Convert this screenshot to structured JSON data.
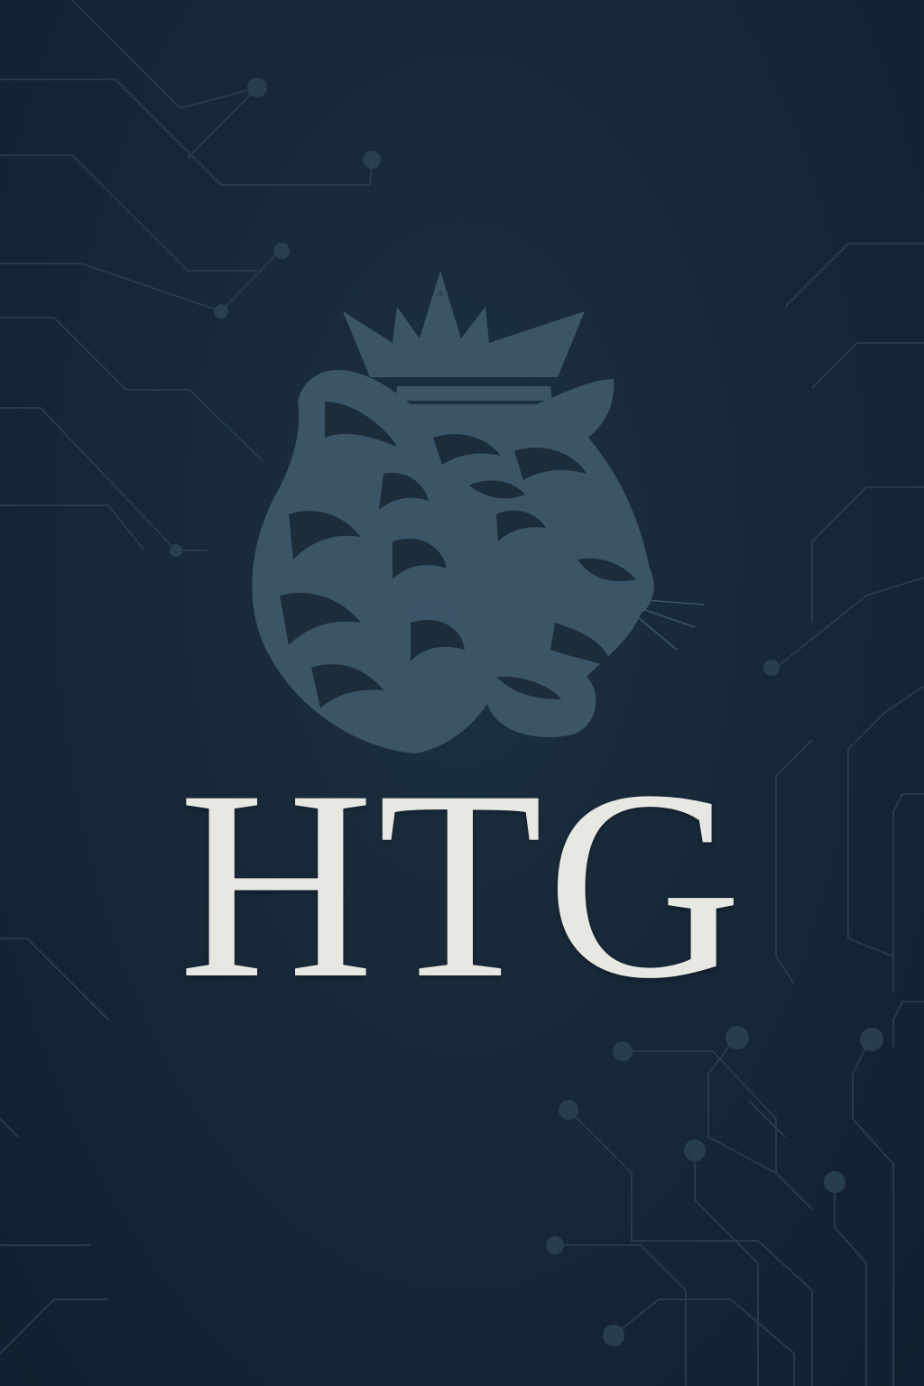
{
  "brand": {
    "wordmark": "HTG",
    "emblem_icon": "crowned-tiger-head-icon",
    "background_pattern": "circuit-lines-pattern"
  },
  "colors": {
    "background": "#172838",
    "emblem": "#3b5567",
    "circuit": "#2a4152",
    "wordmark": "#e7e8e2"
  }
}
